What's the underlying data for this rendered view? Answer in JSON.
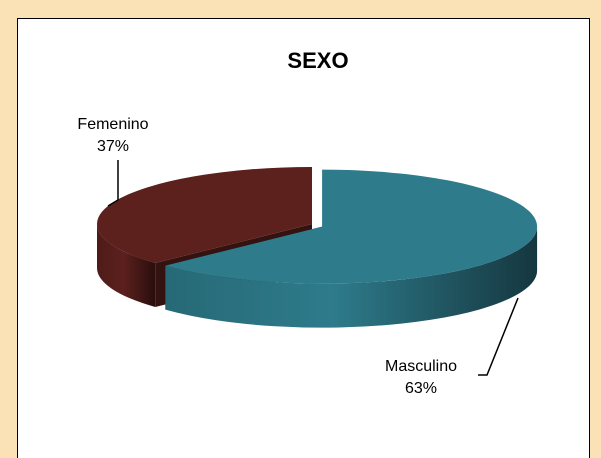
{
  "chart_data": {
    "type": "pie",
    "title": "SEXO",
    "categories": [
      "Masculino",
      "Femenino"
    ],
    "values": [
      63,
      37
    ],
    "value_labels": [
      "63%",
      "37%"
    ],
    "colors": [
      "#2e7b8b",
      "#5c201d"
    ]
  }
}
